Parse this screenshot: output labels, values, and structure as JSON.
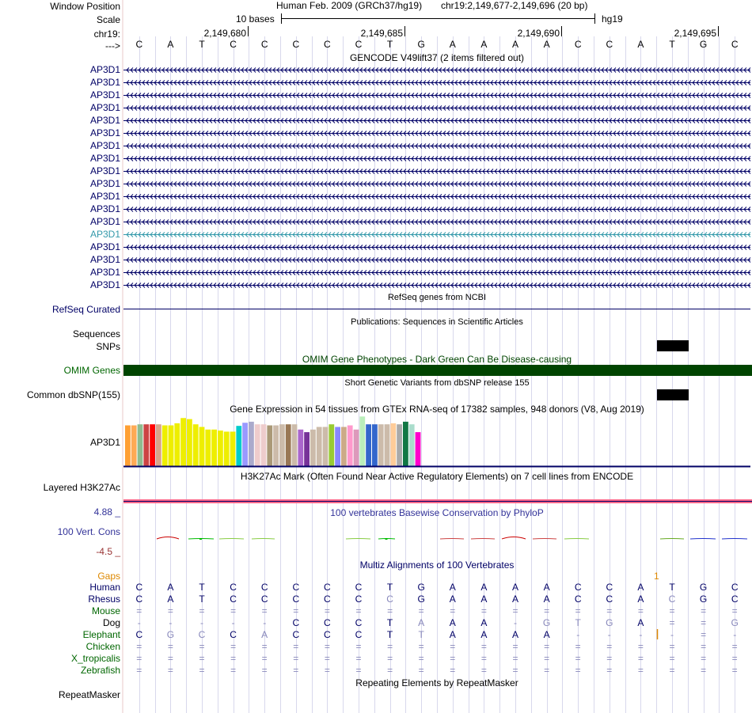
{
  "header": {
    "window_position_label": "Window Position",
    "scale_label": "Scale",
    "chrom_label": "chr19:",
    "strand_label": "--->",
    "assembly_text": "Human Feb. 2009 (GRCh37/hg19)",
    "position_text": "chr19:2,149,677-2,149,696 (20 bp)",
    "scale_text": "10 bases",
    "db_text": "hg19",
    "ruler_ticks": [
      "2,149,680",
      "2,149,685",
      "2,149,690",
      "2,149,695"
    ]
  },
  "bases": [
    "C",
    "A",
    "T",
    "C",
    "C",
    "C",
    "C",
    "C",
    "T",
    "G",
    "A",
    "A",
    "A",
    "A",
    "C",
    "C",
    "A",
    "T",
    "G",
    "C"
  ],
  "gencode": {
    "title": "GENCODE V49lift37 (2 items filtered out)",
    "genes": [
      "AP3D1",
      "AP3D1",
      "AP3D1",
      "AP3D1",
      "AP3D1",
      "AP3D1",
      "AP3D1",
      "AP3D1",
      "AP3D1",
      "AP3D1",
      "AP3D1",
      "AP3D1",
      "AP3D1",
      "AP3D1",
      "AP3D1",
      "AP3D1",
      "AP3D1",
      "AP3D1"
    ],
    "highlight_index": 13
  },
  "refseq": {
    "label": "RefSeq Curated",
    "title": "RefSeq genes from NCBI"
  },
  "publications": {
    "title": "Publications: Sequences in Scientific Articles",
    "label": "Sequences"
  },
  "snps": {
    "label": "SNPs"
  },
  "omim": {
    "title": "OMIM Gene Phenotypes - Dark Green Can Be Disease-causing",
    "label": "OMIM Genes"
  },
  "dbsnp": {
    "title": "Short Genetic Variants from dbSNP release 155",
    "label": "Common dbSNP(155)"
  },
  "gtex": {
    "title": "Gene Expression in 54 tissues from GTEx RNA-seq of 17382 samples, 948 donors (V8, Aug 2019)",
    "label": "AP3D1",
    "bars": [
      {
        "v": 0.78,
        "c": "#ff9f33"
      },
      {
        "v": 0.78,
        "c": "#ffaa55"
      },
      {
        "v": 0.8,
        "c": "#8fbc8f"
      },
      {
        "v": 0.8,
        "c": "#cc4444"
      },
      {
        "v": 0.8,
        "c": "#ff0000"
      },
      {
        "v": 0.8,
        "c": "#d8a58a"
      },
      {
        "v": 0.78,
        "c": "#eeee00"
      },
      {
        "v": 0.78,
        "c": "#eeee00"
      },
      {
        "v": 0.82,
        "c": "#eeee00"
      },
      {
        "v": 0.92,
        "c": "#eeee00"
      },
      {
        "v": 0.9,
        "c": "#eeee00"
      },
      {
        "v": 0.8,
        "c": "#eeee00"
      },
      {
        "v": 0.75,
        "c": "#eeee00"
      },
      {
        "v": 0.7,
        "c": "#eeee00"
      },
      {
        "v": 0.7,
        "c": "#eeee00"
      },
      {
        "v": 0.68,
        "c": "#eeee00"
      },
      {
        "v": 0.66,
        "c": "#eeee00"
      },
      {
        "v": 0.66,
        "c": "#eeee00"
      },
      {
        "v": 0.77,
        "c": "#00cccc"
      },
      {
        "v": 0.83,
        "c": "#9999ff"
      },
      {
        "v": 0.85,
        "c": "#aaaacc"
      },
      {
        "v": 0.8,
        "c": "#eecccc"
      },
      {
        "v": 0.8,
        "c": "#eecccc"
      },
      {
        "v": 0.78,
        "c": "#aa9977"
      },
      {
        "v": 0.78,
        "c": "#ccbbaa"
      },
      {
        "v": 0.8,
        "c": "#ccbbaa"
      },
      {
        "v": 0.8,
        "c": "#997755"
      },
      {
        "v": 0.8,
        "c": "#ccbbaa"
      },
      {
        "v": 0.7,
        "c": "#aa66cc"
      },
      {
        "v": 0.65,
        "c": "#773399"
      },
      {
        "v": 0.7,
        "c": "#ccbbaa"
      },
      {
        "v": 0.75,
        "c": "#ccbbaa"
      },
      {
        "v": 0.75,
        "c": "#ccbbaa"
      },
      {
        "v": 0.8,
        "c": "#99cc33"
      },
      {
        "v": 0.75,
        "c": "#8888ff"
      },
      {
        "v": 0.75,
        "c": "#ccaa88"
      },
      {
        "v": 0.78,
        "c": "#ff99cc"
      },
      {
        "v": 0.7,
        "c": "#dd99bb"
      },
      {
        "v": 0.95,
        "c": "#bbeebb"
      },
      {
        "v": 0.8,
        "c": "#3366cc"
      },
      {
        "v": 0.8,
        "c": "#3366cc"
      },
      {
        "v": 0.8,
        "c": "#ccbbaa"
      },
      {
        "v": 0.8,
        "c": "#ccbbaa"
      },
      {
        "v": 0.82,
        "c": "#ffcc99"
      },
      {
        "v": 0.8,
        "c": "#aaaaaa"
      },
      {
        "v": 0.85,
        "c": "#117744"
      },
      {
        "v": 0.8,
        "c": "#aaddcc"
      },
      {
        "v": 0.65,
        "c": "#ff00cc"
      }
    ]
  },
  "h3k27ac": {
    "title": "H3K27Ac Mark (Often Found Near Active Regulatory Elements) on 7 cell lines from ENCODE",
    "label": "Layered H3K27Ac"
  },
  "phylop": {
    "title": "100 vertebrates Basewise Conservation by PhyloP",
    "label": "100 Vert. Cons",
    "max_label": "4.88 _",
    "min_label": "-4.5 _"
  },
  "multiz": {
    "title": "Multiz Alignments of 100 Vertebrates",
    "gaps_label": "Gaps",
    "gap_marker": "1",
    "species": [
      {
        "name": "Human",
        "color": "#000066",
        "row": "C A T C C C C C T G A A A A C C A T G C",
        "grey": ""
      },
      {
        "name": "Rhesus",
        "color": "#000066",
        "row": "C A T C C C C C C G A A A A C C A C G C",
        "grey": "8,17"
      },
      {
        "name": "Mouse",
        "color": "#006600",
        "row": "= = = = = = = = = = = = = = = = = = = =",
        "grey": "all"
      },
      {
        "name": "Dog",
        "color": "#000000",
        "row": "- - - - - C C C T A A A - G T G A = = G",
        "grey": "0,1,2,3,4,9,12,13,14,15,17,18,19"
      },
      {
        "name": "Elephant",
        "color": "#006600",
        "row": "C G C C A C C C T T A A A A - - - - = -",
        "grey": "1,2,4,9,14,15,16,17,18,19"
      },
      {
        "name": "Chicken",
        "color": "#006600",
        "row": "= = = = = = = = = = = = = = = = = = = =",
        "grey": "all"
      },
      {
        "name": "X_tropicalis",
        "color": "#006600",
        "row": "= = = = = = = = = = = = = = = = = = = =",
        "grey": "all"
      },
      {
        "name": "Zebrafish",
        "color": "#006600",
        "row": "= = = = = = = = = = = = = = = = = = = =",
        "grey": "all"
      }
    ]
  },
  "repeatmasker": {
    "title": "Repeating Elements by RepeatMasker",
    "label": "RepeatMasker"
  },
  "colors": {
    "navy": "#000066",
    "omim_green": "#004400",
    "grid": "#c8c8e0",
    "highlight": "#3399aa",
    "h3k_pink": "#ff6688",
    "h3k_navy": "#000066"
  }
}
